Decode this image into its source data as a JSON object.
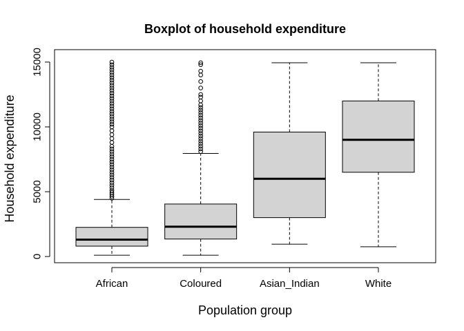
{
  "chart_data": {
    "type": "boxplot",
    "title": "Boxplot of household expenditure",
    "xlabel": "Population group",
    "ylabel": "Household expenditure",
    "ylim": [
      -1000,
      15500
    ],
    "yticks": [
      0,
      5000,
      10000,
      15000
    ],
    "grid": false,
    "box_fill": "#d3d3d3",
    "line_color": "#000000",
    "categories": [
      "African",
      "Coloured",
      "Asian_Indian",
      "White"
    ],
    "boxes": [
      {
        "name": "African",
        "whisker_low": 100,
        "q1": 800,
        "median": 1300,
        "q3": 2250,
        "whisker_high": 4400,
        "outliers": [
          4500,
          4650,
          4800,
          4950,
          5100,
          5300,
          5500,
          5700,
          5900,
          6100,
          6300,
          6500,
          6700,
          6900,
          7100,
          7300,
          7500,
          7700,
          7900,
          8100,
          8300,
          8500,
          8800,
          9100,
          9400,
          9700,
          10000,
          10200,
          10400,
          10600,
          10800,
          11000,
          11200,
          11400,
          11600,
          11800,
          12000,
          12200,
          12400,
          12600,
          12800,
          13000,
          13200,
          13400,
          13600,
          13800,
          14000,
          14200,
          14400,
          14600,
          14800,
          15000
        ]
      },
      {
        "name": "Coloured",
        "whisker_low": 100,
        "q1": 1350,
        "median": 2300,
        "q3": 4050,
        "whisker_high": 7950,
        "outliers": [
          8100,
          8300,
          8500,
          8700,
          8900,
          9100,
          9300,
          9500,
          9700,
          9900,
          10100,
          10300,
          10500,
          10700,
          10900,
          11100,
          11300,
          11500,
          11700,
          12000,
          12300,
          12500,
          13000,
          13500,
          14000,
          14300,
          14800,
          14950
        ]
      },
      {
        "name": "Asian_Indian",
        "whisker_low": 950,
        "q1": 3000,
        "median": 6000,
        "q3": 9600,
        "whisker_high": 14950,
        "outliers": []
      },
      {
        "name": "White",
        "whisker_low": 750,
        "q1": 6500,
        "median": 9000,
        "q3": 12000,
        "whisker_high": 14950,
        "outliers": []
      }
    ]
  }
}
